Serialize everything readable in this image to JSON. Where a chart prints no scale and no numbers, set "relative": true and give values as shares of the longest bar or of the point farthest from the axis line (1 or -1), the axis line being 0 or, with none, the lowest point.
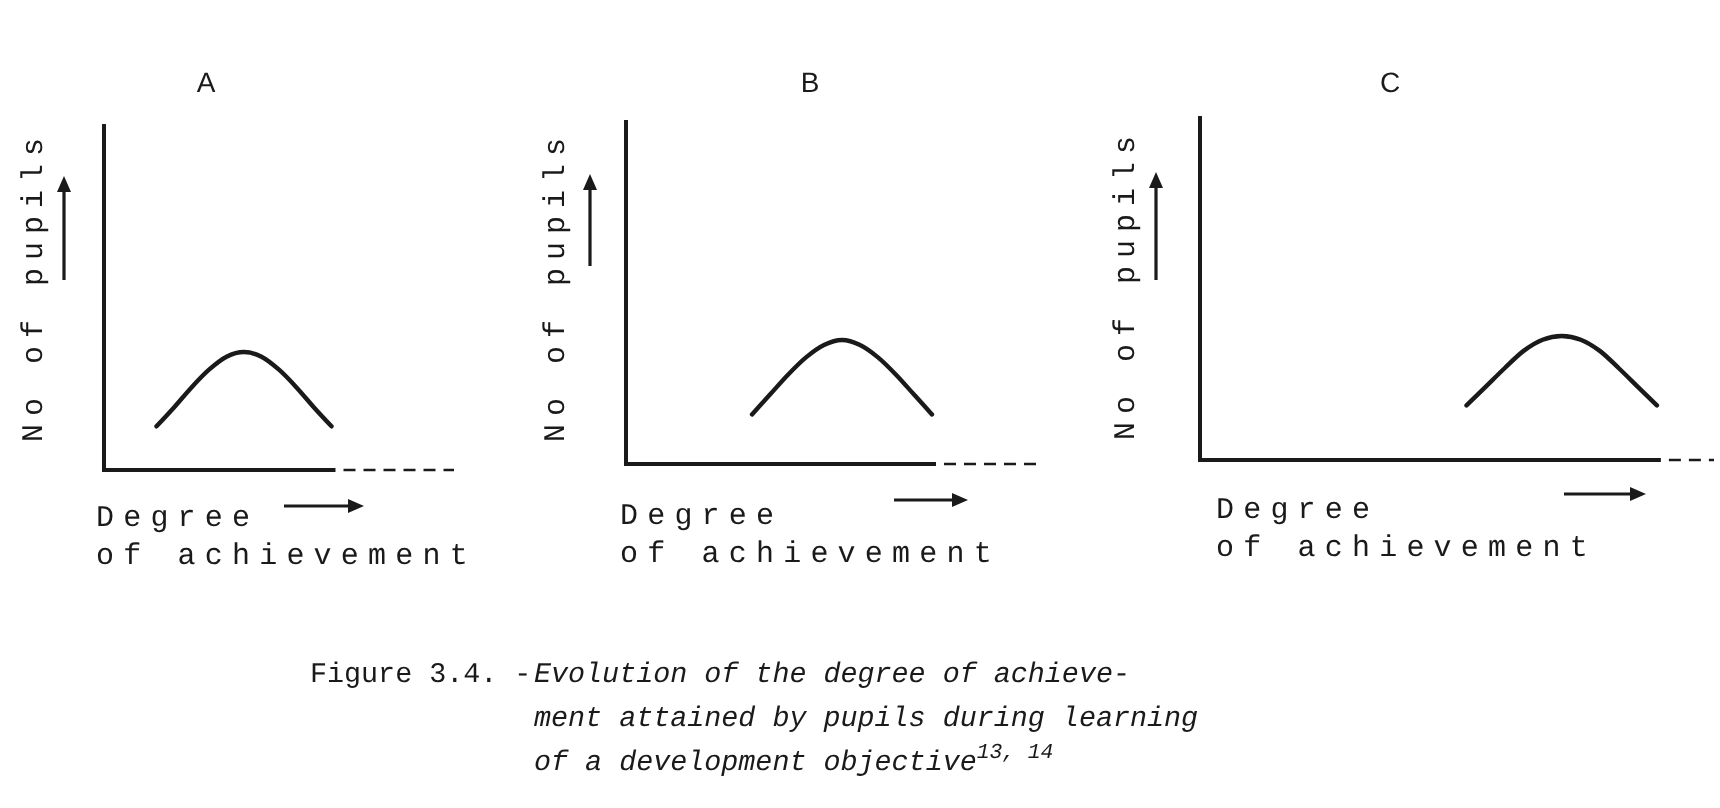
{
  "chart_data": [
    {
      "type": "line",
      "title": "A",
      "xlabel": "Degree\nof achievement",
      "ylabel": "No of pupils",
      "relative": true,
      "tick_labels": false,
      "color": "#1a1a1a",
      "categories": [
        null,
        null,
        null,
        null,
        null,
        null,
        null,
        null,
        null,
        null,
        null,
        null,
        null,
        null,
        null,
        null,
        null,
        null,
        null,
        null,
        null
      ],
      "values": [
        null,
        null,
        null,
        0.37,
        0.53,
        0.7,
        0.85,
        0.96,
        1,
        0.96,
        0.85,
        0.7,
        0.53,
        0.37,
        null,
        null,
        null,
        null,
        null,
        null,
        null
      ],
      "annotations": [
        "Figure 3.4. -",
        "Evolution of the degree of achieve-\nment attained by pupils during learning\nof a development objective$^{13, 14}$"
      ]
    },
    {
      "type": "line",
      "title": "B",
      "xlabel": "Degree\nof achievement",
      "ylabel": "No of pupils",
      "relative": true,
      "tick_labels": false,
      "color": "#1a1a1a",
      "categories": [
        null,
        null,
        null,
        null,
        null,
        null,
        null,
        null,
        null,
        null,
        null,
        null,
        null,
        null,
        null,
        null,
        null,
        null,
        null,
        null,
        null,
        null,
        null,
        null
      ],
      "values": [
        null,
        null,
        null,
        null,
        null,
        null,
        null,
        0.4,
        0.56,
        0.72,
        0.86,
        0.96,
        1,
        0.96,
        0.86,
        0.72,
        0.56,
        0.4,
        null,
        null,
        null,
        null,
        null,
        null
      ]
    },
    {
      "type": "line",
      "title": "C",
      "xlabel": "Degree\nof achievement",
      "ylabel": "No of pupils",
      "relative": true,
      "tick_labels": false,
      "color": "#1a1a1a",
      "categories": [
        null,
        null,
        null,
        null,
        null,
        null,
        null,
        null,
        null,
        null,
        null,
        null,
        null,
        null,
        null,
        null,
        null,
        null,
        null,
        null,
        null,
        null,
        null,
        null,
        null,
        null,
        null,
        null
      ],
      "values": [
        null,
        null,
        null,
        null,
        null,
        null,
        null,
        null,
        null,
        null,
        null,
        null,
        null,
        null,
        0.44,
        0.59,
        0.74,
        0.88,
        0.97,
        1,
        0.97,
        0.88,
        0.74,
        0.59,
        0.44,
        null,
        null,
        null
      ]
    }
  ]
}
